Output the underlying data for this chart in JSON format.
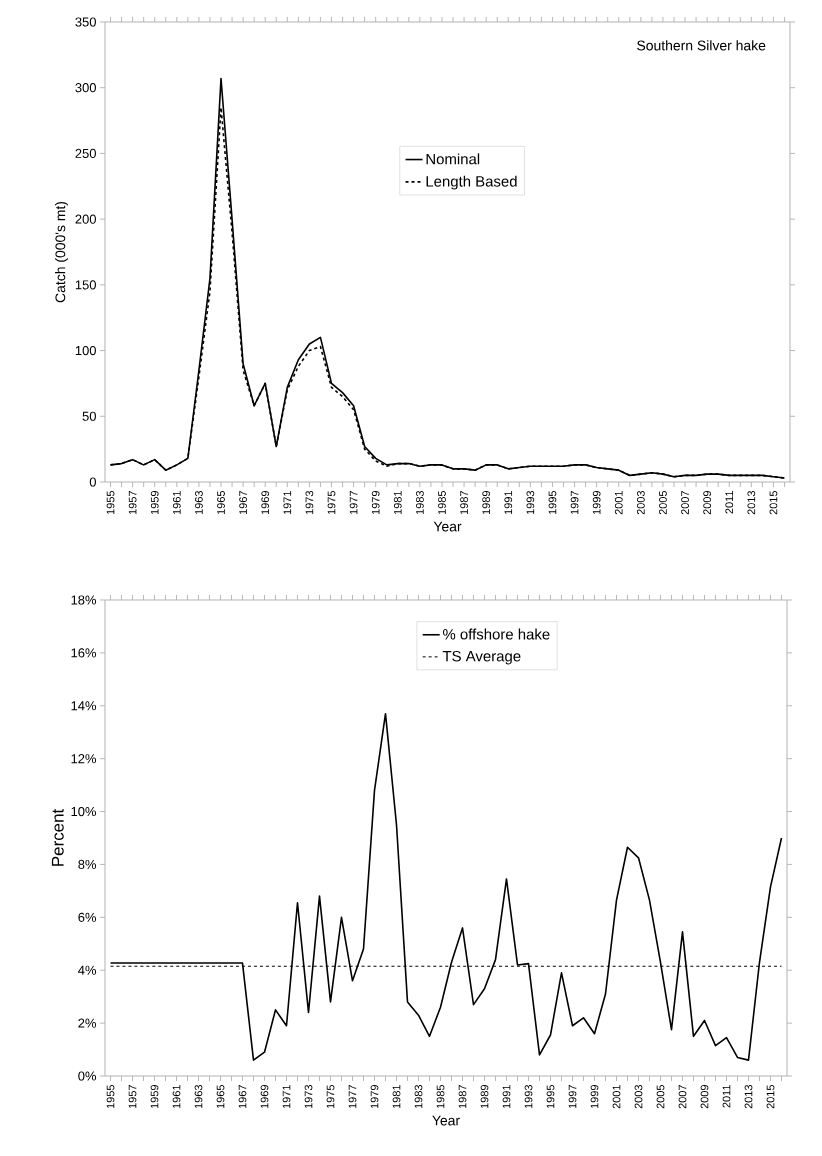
{
  "chart_data": [
    {
      "type": "line",
      "title": "Southern Silver hake",
      "xlabel": "Year",
      "ylabel": "Catch (000's mt)",
      "categories": [
        "1955",
        null,
        "1957",
        null,
        "1959",
        null,
        "1961",
        null,
        "1963",
        null,
        "1965",
        null,
        "1967",
        null,
        "1969",
        null,
        "1971",
        null,
        "1973",
        null,
        "1975",
        null,
        "1977",
        null,
        "1979",
        null,
        "1981",
        null,
        "1983",
        null,
        "1985",
        null,
        "1987",
        null,
        "1989",
        null,
        "1991",
        null,
        "1993",
        null,
        "1995",
        null,
        "1997",
        null,
        "1999",
        null,
        "2001",
        null,
        "2003",
        null,
        "2005",
        null,
        "2007",
        null,
        "2009",
        null,
        "2011",
        null,
        "2013",
        null,
        "2015",
        null
      ],
      "series": [
        {
          "name": "Nominal",
          "color": "#000000",
          "line_style": "solid",
          "values": [
            13,
            14,
            17,
            13,
            17,
            9,
            13,
            18,
            85,
            155,
            307,
            200,
            90,
            58,
            75,
            27,
            72,
            93,
            105,
            110,
            75,
            68,
            58,
            27,
            18,
            13,
            14,
            14,
            12,
            13,
            13,
            10,
            10,
            9,
            13,
            13,
            10,
            11,
            12,
            12,
            12,
            12,
            13,
            13,
            11,
            10,
            9,
            5,
            6,
            7,
            6,
            4,
            5,
            5,
            6,
            6,
            5,
            5,
            5,
            5,
            4,
            3
          ]
        },
        {
          "name": "Length Based",
          "color": "#000000",
          "line_style": "dashed",
          "values": [
            13,
            14,
            17,
            13,
            17,
            9,
            13,
            18,
            80,
            145,
            285,
            190,
            85,
            58,
            75,
            27,
            70,
            88,
            100,
            103,
            72,
            65,
            55,
            25,
            16,
            12,
            14,
            14,
            12,
            13,
            13,
            10,
            10,
            9,
            13,
            13,
            10,
            11,
            12,
            12,
            12,
            12,
            13,
            13,
            11,
            10,
            9,
            5,
            6,
            7,
            6,
            4,
            5,
            5,
            6,
            6,
            5,
            5,
            5,
            5,
            4,
            3
          ]
        }
      ],
      "ylim": [
        0,
        350
      ],
      "yticks": [
        0,
        50,
        100,
        150,
        200,
        250,
        300,
        350
      ],
      "legend": "top"
    },
    {
      "type": "line",
      "xlabel": "Year",
      "ylabel": "Percent",
      "categories": [
        "1955",
        null,
        "1957",
        null,
        "1959",
        null,
        "1961",
        null,
        "1963",
        null,
        "1965",
        null,
        "1967",
        null,
        "1969",
        null,
        "1971",
        null,
        "1973",
        null,
        "1975",
        null,
        "1977",
        null,
        "1979",
        null,
        "1981",
        null,
        "1983",
        null,
        "1985",
        null,
        "1987",
        null,
        "1989",
        null,
        "1991",
        null,
        "1993",
        null,
        "1995",
        null,
        "1997",
        null,
        "1999",
        null,
        "2001",
        null,
        "2003",
        null,
        "2005",
        null,
        "2007",
        null,
        "2009",
        null,
        "2011",
        null,
        "2013",
        null,
        "2015",
        null
      ],
      "series": [
        {
          "name": "% offshore hake",
          "color": "#000000",
          "line_style": "solid",
          "values": [
            4.27,
            4.27,
            4.27,
            4.27,
            4.27,
            4.27,
            4.27,
            4.27,
            4.27,
            4.27,
            4.27,
            4.27,
            4.27,
            0.6,
            0.9,
            2.5,
            1.9,
            6.55,
            2.4,
            6.8,
            2.8,
            6.0,
            3.6,
            4.8,
            10.8,
            13.7,
            9.5,
            2.8,
            2.3,
            1.5,
            2.6,
            4.3,
            5.6,
            2.7,
            3.3,
            4.4,
            7.45,
            4.2,
            4.25,
            0.8,
            1.55,
            3.9,
            1.9,
            2.2,
            1.6,
            3.1,
            6.65,
            8.65,
            8.25,
            6.65,
            4.3,
            1.75,
            5.45,
            1.5,
            2.1,
            1.15,
            1.45,
            0.7,
            0.6,
            4.3,
            7.15,
            9.0
          ]
        }
      ],
      "ref_lines": [
        {
          "axis": "y",
          "value": 4.15,
          "label": "TS Average",
          "color": "#000000",
          "line_style": "dashed"
        }
      ],
      "ylim": [
        0,
        18
      ],
      "yticks": [
        {
          "value": 0,
          "label": "0%"
        },
        {
          "value": 2,
          "label": "2%"
        },
        {
          "value": 4,
          "label": "4%"
        },
        {
          "value": 6,
          "label": "6%"
        },
        {
          "value": 8,
          "label": "8%"
        },
        {
          "value": 10,
          "label": "10%"
        },
        {
          "value": 12,
          "label": "12%"
        },
        {
          "value": 14,
          "label": "14%"
        },
        {
          "value": 16,
          "label": "16%"
        },
        {
          "value": 18,
          "label": "18%"
        }
      ],
      "legend": "top right"
    }
  ]
}
